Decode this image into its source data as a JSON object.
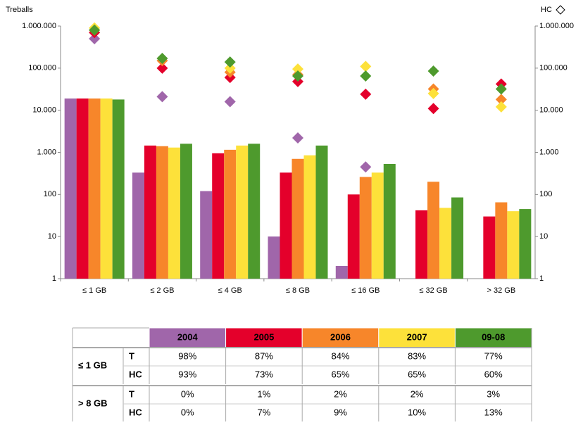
{
  "chart_data": {
    "type": "bar",
    "log_scale": true,
    "y_label": "Treballs",
    "y2_label": "HC",
    "categories": [
      "≤ 1 GB",
      "≤ 2 GB",
      "≤ 4 GB",
      "≤ 8 GB",
      "≤ 16 GB",
      "≤ 32 GB",
      "> 32 GB"
    ],
    "ylim": [
      1,
      1000000
    ],
    "yticks": [
      1,
      10,
      100,
      {
        "value": 1000,
        "label": "1.000"
      },
      {
        "value": 10000,
        "label": "10.000"
      },
      {
        "value": 100000,
        "label": "100.000"
      },
      {
        "value": 1000000,
        "label": "1.000.000"
      }
    ],
    "y2lim": [
      1,
      1000000
    ],
    "y2ticks": [
      1,
      10,
      100,
      {
        "value": 1000,
        "label": "1.000"
      },
      {
        "value": 10000,
        "label": "10.000"
      },
      {
        "value": 100000,
        "label": "100.000"
      },
      {
        "value": 1000000,
        "label": "1.000.000"
      }
    ],
    "series": [
      {
        "name": "2004",
        "color": "#a066aa",
        "values": [
          19000,
          330,
          120,
          10,
          2,
          null,
          null
        ],
        "hc_values": [
          500000,
          21000,
          16000,
          2200,
          450,
          null,
          null
        ],
        "axis_hc": "y2"
      },
      {
        "name": "2005",
        "color": "#e4002b",
        "values": [
          19000,
          1450,
          950,
          330,
          100,
          42,
          30
        ],
        "hc_values": [
          700000,
          100000,
          60000,
          48000,
          24000,
          11000,
          42000
        ],
        "axis_hc": "y2"
      },
      {
        "name": "2006",
        "color": "#f7862a",
        "values": [
          19000,
          1400,
          1150,
          700,
          260,
          200,
          65
        ],
        "hc_values": [
          800000,
          150000,
          80000,
          70000,
          null,
          32000,
          18000
        ],
        "axis_hc": "y2"
      },
      {
        "name": "2007",
        "color": "#fde13a",
        "values": [
          19000,
          1300,
          1450,
          850,
          330,
          48,
          40
        ],
        "hc_values": [
          900000,
          null,
          100000,
          95000,
          110000,
          25000,
          12000
        ],
        "axis_hc": "y2"
      },
      {
        "name": "09-08",
        "color": "#4e9a2d",
        "values": [
          18000,
          1600,
          1600,
          1450,
          530,
          85,
          45
        ],
        "hc_values": [
          800000,
          170000,
          140000,
          65000,
          65000,
          85000,
          32000
        ],
        "axis_hc": "y2"
      }
    ]
  },
  "table": {
    "groups": [
      {
        "label": "≤ 1 GB",
        "rows": [
          {
            "label": "T",
            "cells": [
              "98%",
              "87%",
              "84%",
              "83%",
              "77%"
            ]
          },
          {
            "label": "HC",
            "cells": [
              "93%",
              "73%",
              "65%",
              "65%",
              "60%"
            ]
          }
        ]
      },
      {
        "label": "> 8 GB",
        "rows": [
          {
            "label": "T",
            "cells": [
              "0%",
              "1%",
              "2%",
              "2%",
              "3%"
            ]
          },
          {
            "label": "HC",
            "cells": [
              "0%",
              "7%",
              "9%",
              "10%",
              "13%"
            ]
          }
        ]
      }
    ]
  }
}
